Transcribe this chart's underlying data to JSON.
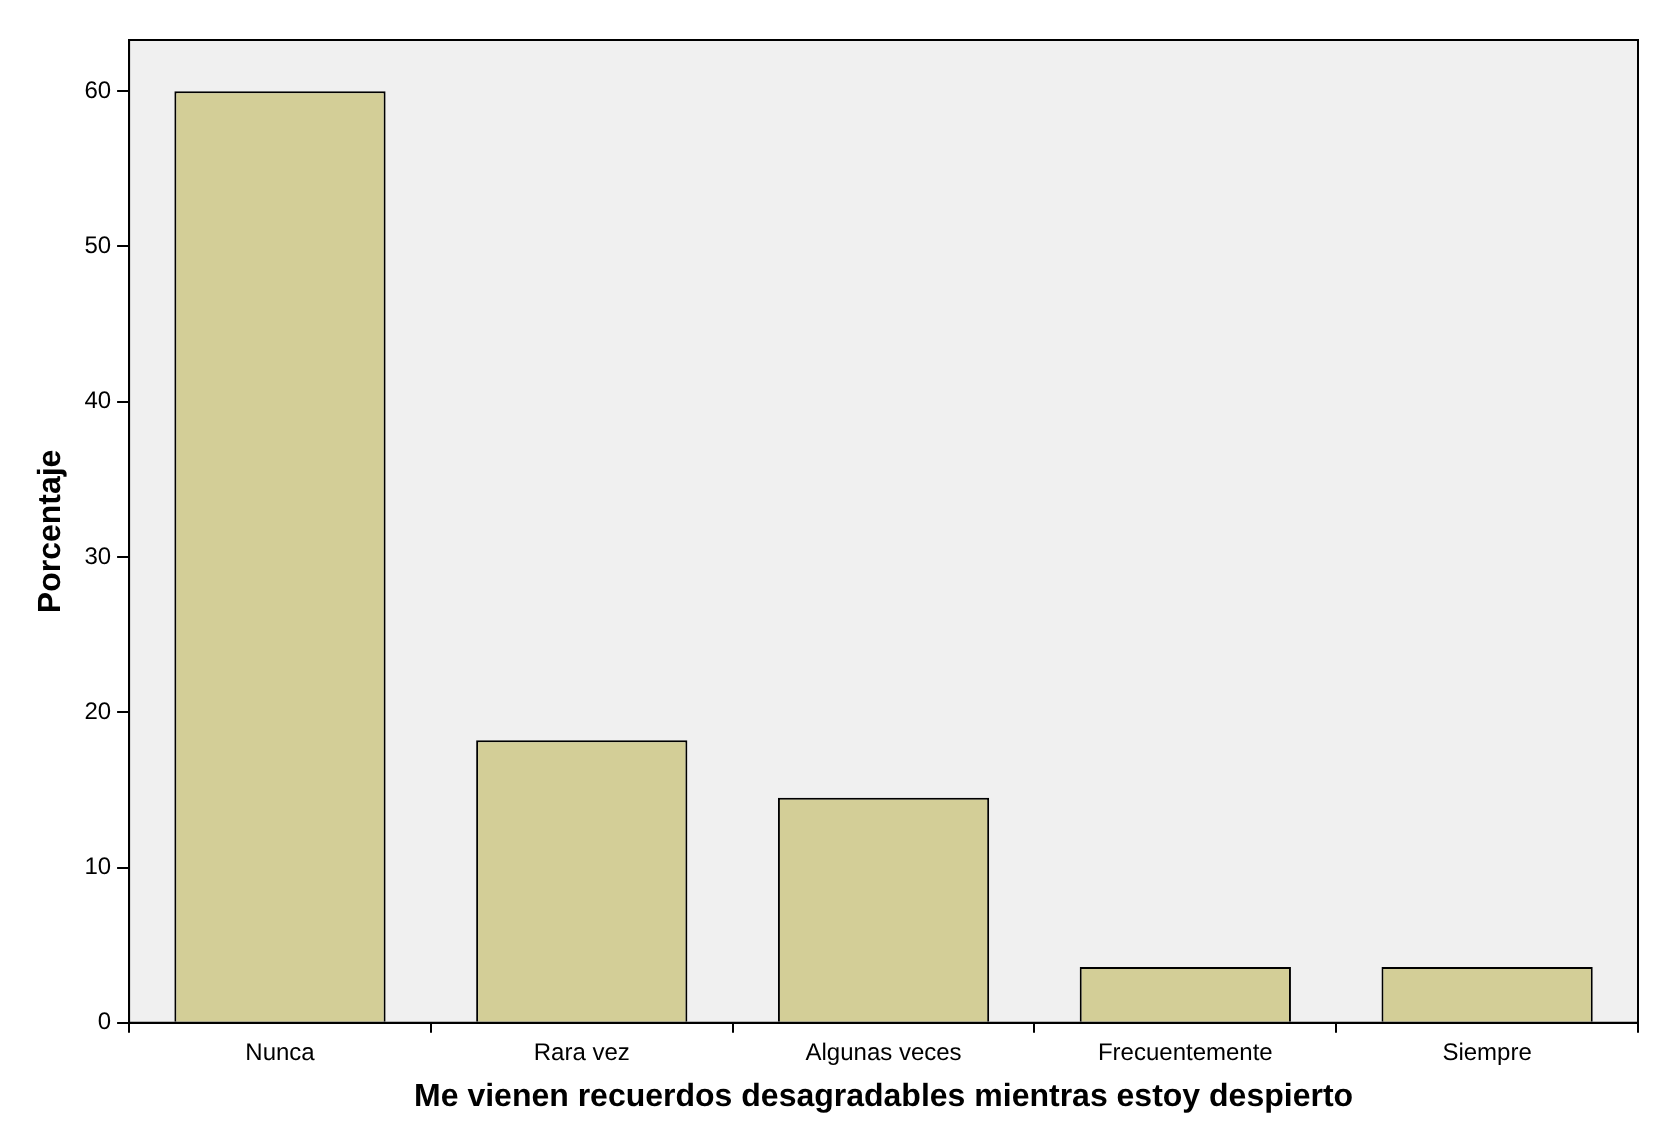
{
  "chart_data": {
    "type": "bar",
    "xlabel": "Me vienen recuerdos desagradables mientras estoy despierto",
    "ylabel": "Porcentaje",
    "categories": [
      "Nunca",
      "Rara vez",
      "Algunas veces",
      "Frecuentemente",
      "Siempre"
    ],
    "values": [
      60,
      18.2,
      14.5,
      3.6,
      3.6
    ],
    "color": "#d3ce97",
    "ylim": [
      0,
      63.3
    ],
    "yticks": [
      0,
      10,
      20,
      30,
      40,
      50,
      60
    ],
    "grid": false,
    "legend": false
  }
}
